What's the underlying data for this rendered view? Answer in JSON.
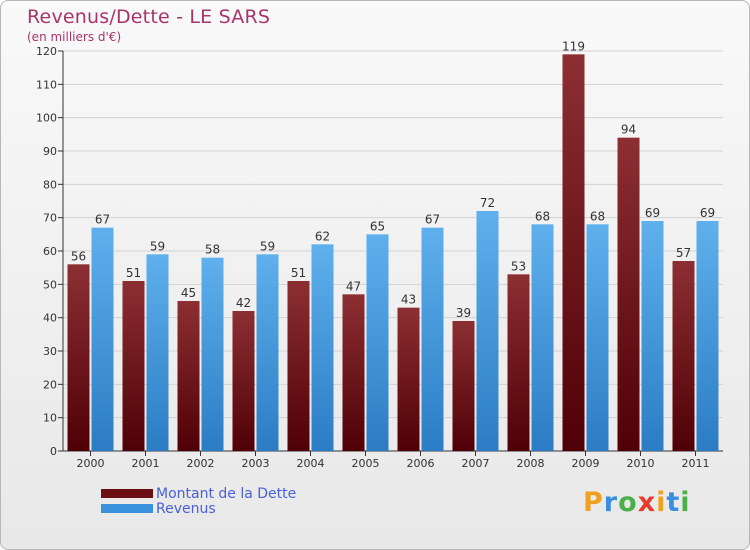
{
  "header": {
    "title": "Revenus/Dette - LE SARS",
    "subtitle": "(en milliers d'€)"
  },
  "legend": [
    {
      "label": "Montant de la Dette",
      "color": "#6b0f14"
    },
    {
      "label": "Revenus",
      "color": "#3a92dc"
    }
  ],
  "brand": {
    "letters": [
      "P",
      "r",
      "o",
      "x",
      "i",
      "t",
      "i"
    ]
  },
  "colors": {
    "dette_top": "#8c2f33",
    "dette_bottom": "#4f0006",
    "revenus_top": "#5fb0ec",
    "revenus_bottom": "#2b7cc4",
    "brand": [
      "#f0a020",
      "#3a8ee0",
      "#4bb04b",
      "#e83a2a",
      "#f0a020",
      "#3a8ee0",
      "#4bb04b"
    ]
  },
  "chart_data": {
    "type": "bar",
    "title": "Revenus/Dette - LE SARS",
    "subtitle": "(en milliers d'€)",
    "categories": [
      "2000",
      "2001",
      "2002",
      "2003",
      "2004",
      "2005",
      "2006",
      "2007",
      "2008",
      "2009",
      "2010",
      "2011"
    ],
    "series": [
      {
        "name": "Montant de la Dette",
        "values": [
          56,
          51,
          45,
          42,
          51,
          47,
          43,
          39,
          53,
          119,
          94,
          57
        ]
      },
      {
        "name": "Revenus",
        "values": [
          67,
          59,
          58,
          59,
          62,
          65,
          67,
          72,
          68,
          68,
          69,
          69
        ]
      }
    ],
    "ylim": [
      0,
      120
    ],
    "yticks": [
      0,
      10,
      20,
      30,
      40,
      50,
      60,
      70,
      80,
      90,
      100,
      110,
      120
    ],
    "grid": true,
    "legend_position": "bottom-left"
  }
}
